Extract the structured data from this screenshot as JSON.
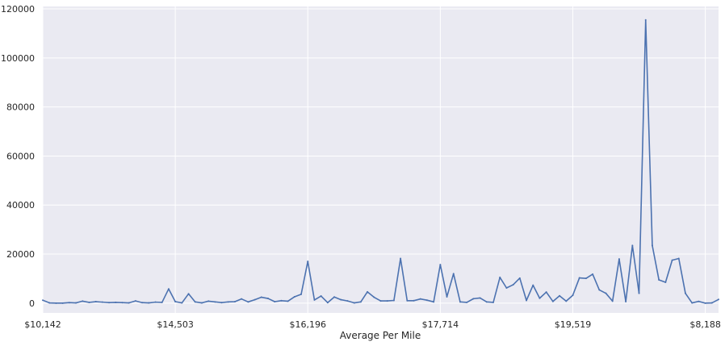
{
  "chart_data": {
    "type": "line",
    "title": "",
    "xlabel": "Average Per Mile",
    "ylabel": "",
    "x_tick_labels": [
      "$10,142",
      "$14,503",
      "$16,196",
      "$17,714",
      "$19,519",
      "$8,188"
    ],
    "x_tick_index": [
      0,
      20,
      40,
      60,
      80,
      100
    ],
    "y_ticks": [
      0,
      20000,
      40000,
      60000,
      80000,
      100000,
      120000
    ],
    "y_tick_labels": [
      "0",
      "20000",
      "40000",
      "60000",
      "80000",
      "100000",
      "120000"
    ],
    "ylim": [
      -4000,
      121000
    ],
    "grid": true,
    "background": "#eaeaf2",
    "grid_color": "#ffffff",
    "series": [
      {
        "color": "#4c72b0",
        "values": [
          1200,
          100,
          0,
          0,
          200,
          100,
          800,
          300,
          600,
          400,
          200,
          300,
          200,
          100,
          900,
          200,
          100,
          400,
          300,
          5800,
          600,
          100,
          3800,
          500,
          100,
          800,
          500,
          200,
          500,
          600,
          1700,
          500,
          1400,
          2400,
          1900,
          600,
          1000,
          800,
          2600,
          3600,
          17000,
          1300,
          2900,
          200,
          2500,
          1400,
          900,
          100,
          500,
          4600,
          2400,
          900,
          900,
          1100,
          18200,
          1000,
          1000,
          1700,
          1200,
          500,
          15700,
          2600,
          12000,
          500,
          300,
          1800,
          2100,
          500,
          300,
          10500,
          6200,
          7500,
          10200,
          1100,
          7300,
          2000,
          4500,
          700,
          3000,
          800,
          3200,
          10300,
          10100,
          11800,
          5400,
          4000,
          800,
          18000,
          600,
          23500,
          4000,
          115500,
          23500,
          9500,
          8500,
          17500,
          18200,
          4000,
          100,
          700,
          0,
          100,
          1500
        ]
      }
    ]
  }
}
